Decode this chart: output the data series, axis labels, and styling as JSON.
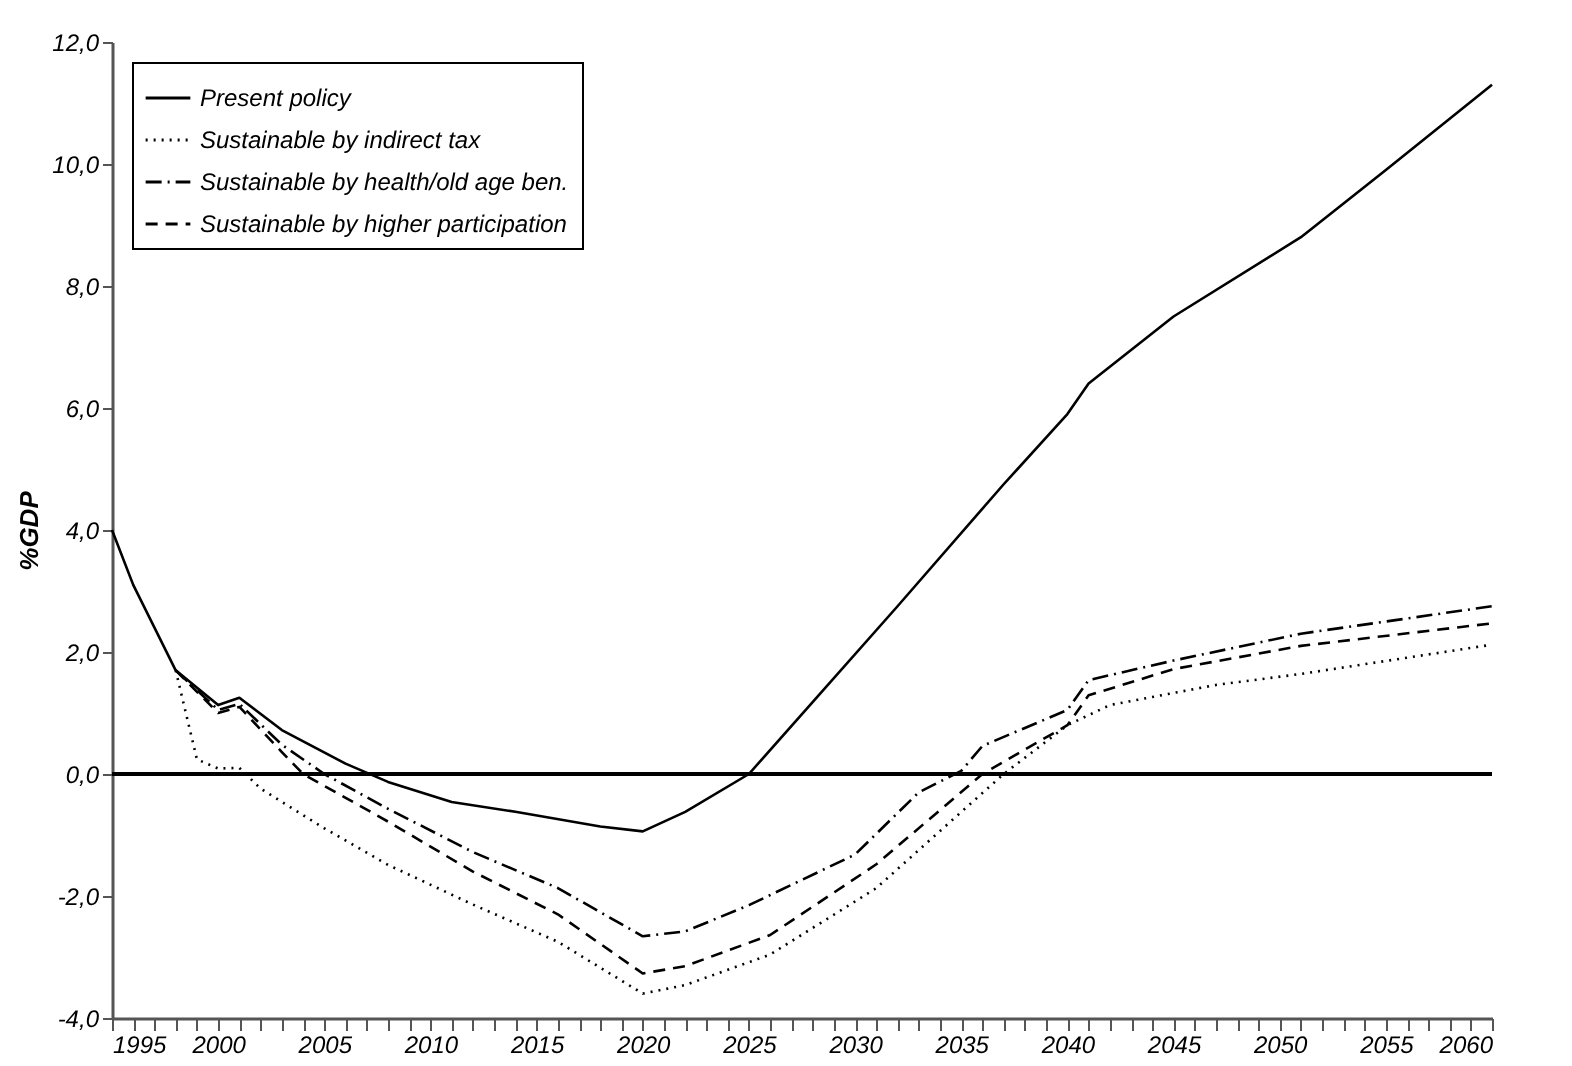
{
  "chart_data": {
    "type": "line",
    "ylabel": "%GDP",
    "legend": "top left",
    "grid": false,
    "xlim": [
      1995,
      2060
    ],
    "xticks": [
      1995,
      {
        "value": 1996,
        "label": null
      },
      {
        "value": 1997,
        "label": null
      },
      {
        "value": 1998,
        "label": null
      },
      {
        "value": 1999,
        "label": null
      },
      2000,
      {
        "value": 2001,
        "label": null
      },
      {
        "value": 2002,
        "label": null
      },
      {
        "value": 2003,
        "label": null
      },
      {
        "value": 2004,
        "label": null
      },
      2005,
      {
        "value": 2006,
        "label": null
      },
      {
        "value": 2007,
        "label": null
      },
      {
        "value": 2008,
        "label": null
      },
      {
        "value": 2009,
        "label": null
      },
      2010,
      {
        "value": 2011,
        "label": null
      },
      {
        "value": 2012,
        "label": null
      },
      {
        "value": 2013,
        "label": null
      },
      {
        "value": 2014,
        "label": null
      },
      2015,
      {
        "value": 2016,
        "label": null
      },
      {
        "value": 2017,
        "label": null
      },
      {
        "value": 2018,
        "label": null
      },
      {
        "value": 2019,
        "label": null
      },
      2020,
      {
        "value": 2021,
        "label": null
      },
      {
        "value": 2022,
        "label": null
      },
      {
        "value": 2023,
        "label": null
      },
      {
        "value": 2024,
        "label": null
      },
      2025,
      {
        "value": 2026,
        "label": null
      },
      {
        "value": 2027,
        "label": null
      },
      {
        "value": 2028,
        "label": null
      },
      {
        "value": 2029,
        "label": null
      },
      2030,
      {
        "value": 2031,
        "label": null
      },
      {
        "value": 2032,
        "label": null
      },
      {
        "value": 2033,
        "label": null
      },
      {
        "value": 2034,
        "label": null
      },
      2035,
      {
        "value": 2036,
        "label": null
      },
      {
        "value": 2037,
        "label": null
      },
      {
        "value": 2038,
        "label": null
      },
      {
        "value": 2039,
        "label": null
      },
      2040,
      {
        "value": 2041,
        "label": null
      },
      {
        "value": 2042,
        "label": null
      },
      {
        "value": 2043,
        "label": null
      },
      {
        "value": 2044,
        "label": null
      },
      2045,
      {
        "value": 2046,
        "label": null
      },
      {
        "value": 2047,
        "label": null
      },
      {
        "value": 2048,
        "label": null
      },
      {
        "value": 2049,
        "label": null
      },
      2050,
      {
        "value": 2051,
        "label": null
      },
      {
        "value": 2052,
        "label": null
      },
      {
        "value": 2053,
        "label": null
      },
      {
        "value": 2054,
        "label": null
      },
      2055,
      {
        "value": 2056,
        "label": null
      },
      {
        "value": 2057,
        "label": null
      },
      {
        "value": 2058,
        "label": null
      },
      {
        "value": 2059,
        "label": null
      },
      2060
    ],
    "ylim": [
      -4,
      12
    ],
    "yticks": [
      {
        "value": -4,
        "label": "-4,0"
      },
      {
        "value": -2,
        "label": "-2,0"
      },
      {
        "value": 0,
        "label": "0,0"
      },
      {
        "value": 2,
        "label": "2,0"
      },
      {
        "value": 4,
        "label": "4,0"
      },
      {
        "value": 6,
        "label": "6,0"
      },
      {
        "value": 8,
        "label": "8,0"
      },
      {
        "value": 10,
        "label": "10,0"
      },
      {
        "value": 12,
        "label": "12,0"
      }
    ],
    "ref_lines": [
      {
        "axis": "y",
        "value": 0,
        "label": null,
        "color": "#000000"
      }
    ],
    "series": [
      {
        "name": "Present policy",
        "color": "#000000",
        "line_style": "solid",
        "x": [
          1995,
          1996,
          1998,
          2000,
          2001,
          2003,
          2006,
          2008,
          2011,
          2014,
          2018,
          2020,
          2022,
          2025,
          2028,
          2032,
          2037,
          2040,
          2041,
          2045,
          2051,
          2055,
          2060
        ],
        "values": [
          4.0,
          3.1,
          1.7,
          1.13,
          1.25,
          0.72,
          0.17,
          -0.13,
          -0.46,
          -0.62,
          -0.86,
          -0.94,
          -0.62,
          0.0,
          1.18,
          2.75,
          4.75,
          5.9,
          6.4,
          7.5,
          8.8,
          9.9,
          11.3
        ]
      },
      {
        "name": "Sustainable by indirect tax",
        "color": "#000000",
        "line_style": "dotted",
        "x": [
          1998,
          1999,
          2000,
          2001,
          2002,
          2005,
          2008,
          2012,
          2016,
          2020,
          2022,
          2026,
          2031,
          2037,
          2040,
          2042,
          2047,
          2051,
          2060
        ],
        "values": [
          1.7,
          0.24,
          0.09,
          0.1,
          -0.24,
          -0.89,
          -1.49,
          -2.14,
          -2.75,
          -3.6,
          -3.46,
          -2.96,
          -1.87,
          0.0,
          0.8,
          1.13,
          1.46,
          1.64,
          2.12
        ]
      },
      {
        "name": "Sustainable by health/old age ben.",
        "color": "#000000",
        "line_style": "dashdot",
        "x": [
          1998,
          2000,
          2001,
          2003,
          2005,
          2008,
          2012,
          2016,
          2020,
          2022,
          2025,
          2030,
          2033,
          2035,
          2036,
          2040,
          2041,
          2045,
          2051,
          2060
        ],
        "values": [
          1.7,
          1.05,
          1.15,
          0.48,
          0.0,
          -0.57,
          -1.28,
          -1.87,
          -2.66,
          -2.58,
          -2.15,
          -1.32,
          -0.3,
          0.05,
          0.46,
          1.05,
          1.54,
          1.86,
          2.3,
          2.75
        ]
      },
      {
        "name": "Sustainable by higher participation",
        "color": "#000000",
        "line_style": "dashed",
        "x": [
          1998,
          2000,
          2001,
          2003,
          2004,
          2008,
          2012,
          2016,
          2020,
          2022,
          2026,
          2031,
          2036,
          2040,
          2041,
          2045,
          2051,
          2060
        ],
        "values": [
          1.7,
          1.0,
          1.1,
          0.36,
          0.0,
          -0.78,
          -1.6,
          -2.3,
          -3.27,
          -3.15,
          -2.64,
          -1.48,
          0.0,
          0.8,
          1.29,
          1.72,
          2.1,
          2.47
        ]
      }
    ]
  }
}
